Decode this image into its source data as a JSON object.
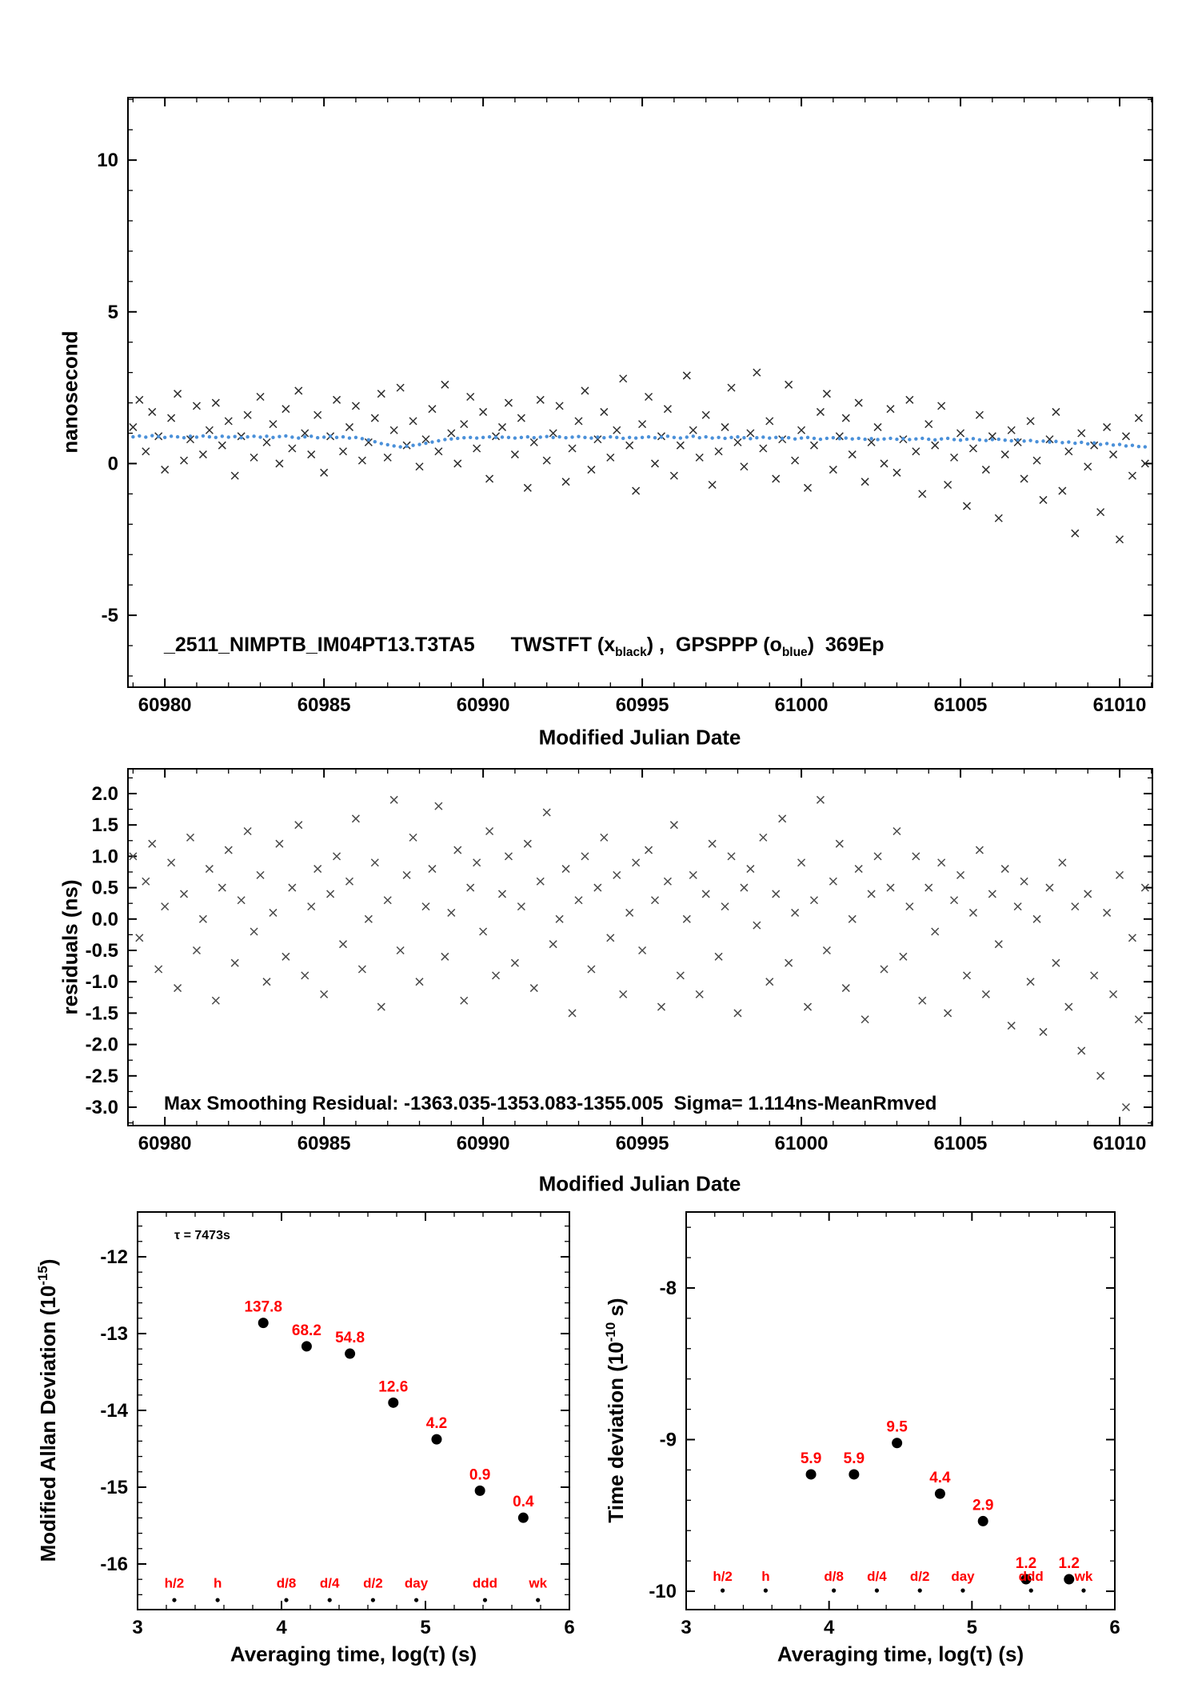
{
  "colors": {
    "axis": "#000000",
    "black_marker": "#2e2e2e",
    "residual_marker": "#4a4a4a",
    "blue_marker": "#4a90d9",
    "red_label": "#ff0000"
  },
  "chart_data": [
    {
      "id": "time-comparison",
      "type": "scatter",
      "xlabel": "Modified Julian Date",
      "ylabel": "nanosecond",
      "xlim": [
        60978.84,
        61011.03
      ],
      "ylim": [
        -7.37,
        12.06
      ],
      "xticks": [
        60980,
        60985,
        60990,
        60995,
        61000,
        61005,
        61010
      ],
      "xtick_labels": [
        "60980",
        "60985",
        "60990",
        "60995",
        "61000",
        "61005",
        "61010"
      ],
      "xminor": 1,
      "yticks": [
        -5,
        0,
        5,
        10
      ],
      "ytick_labels": [
        "-5",
        "0",
        "5",
        "10"
      ],
      "yminor": 1,
      "grid": false,
      "annotation": {
        "id_label": "_2511_NIMPTB_IM04PT13.T3TA5",
        "seg1": "TWSTFT (x",
        "sub1": "black",
        "seg2": ") ,  GPSPPP (o",
        "sub2": "blue",
        "seg3": ")  369Ep"
      },
      "series": [
        {
          "name": "TWSTFT",
          "marker": "x",
          "color": "#2e2e2e",
          "x0": 60979.0,
          "dx": 0.2,
          "y": [
            1.2,
            2.1,
            0.4,
            1.7,
            0.9,
            -0.2,
            1.5,
            2.3,
            0.1,
            0.8,
            1.9,
            0.3,
            1.1,
            2.0,
            0.6,
            1.4,
            -0.4,
            0.9,
            1.6,
            0.2,
            2.2,
            0.7,
            1.3,
            0.0,
            1.8,
            0.5,
            2.4,
            1.0,
            0.3,
            1.6,
            -0.3,
            0.9,
            2.1,
            0.4,
            1.2,
            1.9,
            0.1,
            0.7,
            1.5,
            2.3,
            0.2,
            1.1,
            2.5,
            0.6,
            1.4,
            -0.1,
            0.8,
            1.8,
            0.4,
            2.6,
            1.0,
            0.0,
            1.3,
            2.2,
            0.5,
            1.7,
            -0.5,
            0.9,
            1.2,
            2.0,
            0.3,
            1.5,
            -0.8,
            0.7,
            2.1,
            0.1,
            1.0,
            1.9,
            -0.6,
            0.5,
            1.4,
            2.4,
            -0.2,
            0.8,
            1.7,
            0.2,
            1.1,
            2.8,
            0.6,
            -0.9,
            1.3,
            2.2,
            0.0,
            0.9,
            1.8,
            -0.4,
            0.6,
            2.9,
            1.1,
            0.2,
            1.6,
            -0.7,
            0.4,
            1.2,
            2.5,
            0.7,
            -0.1,
            1.0,
            3.0,
            0.5,
            1.4,
            -0.5,
            0.8,
            2.6,
            0.1,
            1.1,
            -0.8,
            0.6,
            1.7,
            2.3,
            -0.2,
            0.9,
            1.5,
            0.3,
            2.0,
            -0.6,
            0.7,
            1.2,
            0.0,
            1.8,
            -0.3,
            0.8,
            2.1,
            0.4,
            -1.0,
            1.3,
            0.6,
            1.9,
            -0.7,
            0.2,
            1.0,
            -1.4,
            0.5,
            1.6,
            -0.2,
            0.9,
            -1.8,
            0.3,
            1.1,
            0.7,
            -0.5,
            1.4,
            0.1,
            -1.2,
            0.8,
            1.7,
            -0.9,
            0.4,
            -2.3,
            1.0,
            -0.1,
            0.6,
            -1.6,
            1.2,
            0.3,
            -2.5,
            0.9,
            -0.4,
            1.5,
            0.0
          ]
        },
        {
          "name": "GPSPPP",
          "marker": "dot",
          "color": "#4a90d9",
          "x0": 60979.0,
          "dx": 0.2,
          "y": [
            0.88,
            0.91,
            0.87,
            0.92,
            0.89,
            0.86,
            0.9,
            0.88,
            0.85,
            0.9,
            0.87,
            0.91,
            0.88,
            0.86,
            0.9,
            0.87,
            0.89,
            0.85,
            0.88,
            0.9,
            0.87,
            0.9,
            0.86,
            0.89,
            0.91,
            0.87,
            0.84,
            0.88,
            0.9,
            0.85,
            0.87,
            0.9,
            0.86,
            0.88,
            0.84,
            0.86,
            0.82,
            0.78,
            0.72,
            0.66,
            0.62,
            0.58,
            0.55,
            0.57,
            0.6,
            0.63,
            0.67,
            0.71,
            0.75,
            0.79,
            0.81,
            0.83,
            0.85,
            0.86,
            0.84,
            0.86,
            0.88,
            0.86,
            0.87,
            0.86,
            0.84,
            0.86,
            0.88,
            0.85,
            0.87,
            0.89,
            0.86,
            0.88,
            0.85,
            0.87,
            0.89,
            0.86,
            0.84,
            0.87,
            0.85,
            0.88,
            0.86,
            0.83,
            0.86,
            0.84,
            0.86,
            0.88,
            0.85,
            0.87,
            0.9,
            0.86,
            0.84,
            0.87,
            0.9,
            0.85,
            0.88,
            0.84,
            0.86,
            0.83,
            0.86,
            0.88,
            0.85,
            0.82,
            0.85,
            0.87,
            0.84,
            0.86,
            0.83,
            0.85,
            0.81,
            0.84,
            0.86,
            0.83,
            0.8,
            0.83,
            0.85,
            0.82,
            0.84,
            0.81,
            0.83,
            0.8,
            0.82,
            0.79,
            0.81,
            0.83,
            0.8,
            0.82,
            0.79,
            0.81,
            0.83,
            0.8,
            0.78,
            0.81,
            0.83,
            0.79,
            0.77,
            0.8,
            0.82,
            0.78,
            0.76,
            0.79,
            0.8,
            0.77,
            0.75,
            0.78,
            0.74,
            0.76,
            0.72,
            0.74,
            0.71,
            0.73,
            0.69,
            0.71,
            0.67,
            0.7,
            0.65,
            0.68,
            0.63,
            0.66,
            0.61,
            0.63,
            0.58,
            0.6,
            0.56,
            0.55
          ]
        }
      ]
    },
    {
      "id": "residuals",
      "type": "scatter",
      "xlabel": "Modified Julian Date",
      "ylabel": "residuals (ns)",
      "xlim": [
        60978.84,
        61011.03
      ],
      "ylim": [
        -3.293,
        2.395
      ],
      "xticks": [
        60980,
        60985,
        60990,
        60995,
        61000,
        61005,
        61010
      ],
      "xtick_labels": [
        "60980",
        "60985",
        "60990",
        "60995",
        "61000",
        "61005",
        "61010"
      ],
      "xminor": 1,
      "yticks": [
        2.0,
        1.5,
        1.0,
        0.5,
        0.0,
        -0.5,
        -1.0,
        -1.5,
        -2.0,
        -2.5,
        -3.0
      ],
      "ytick_labels": [
        "2.0",
        "1.5",
        "1.0",
        "0.5",
        "0.0",
        "-0.5",
        "-1.0",
        "-1.5",
        "-2.0",
        "-2.5",
        "-3.0"
      ],
      "yminor": 0.25,
      "grid": false,
      "annotation": "Max Smoothing Residual: -1363.035-1353.083-1355.005  Sigma= 1.114ns-MeanRmved",
      "series": [
        {
          "name": "smoothing-residuals",
          "marker": "x",
          "color": "#4a4a4a",
          "x0": 60979.0,
          "dx": 0.2,
          "y": [
            1.0,
            -0.3,
            0.6,
            1.2,
            -0.8,
            0.2,
            0.9,
            -1.1,
            0.4,
            1.3,
            -0.5,
            0.0,
            0.8,
            -1.3,
            0.5,
            1.1,
            -0.7,
            0.3,
            1.4,
            -0.2,
            0.7,
            -1.0,
            0.1,
            1.2,
            -0.6,
            0.5,
            1.5,
            -0.9,
            0.2,
            0.8,
            -1.2,
            0.4,
            1.0,
            -0.4,
            0.6,
            1.6,
            -0.8,
            0.0,
            0.9,
            -1.4,
            0.3,
            1.9,
            -0.5,
            0.7,
            1.3,
            -1.0,
            0.2,
            0.8,
            1.8,
            -0.6,
            0.1,
            1.1,
            -1.3,
            0.5,
            0.9,
            -0.2,
            1.4,
            -0.9,
            0.4,
            1.0,
            -0.7,
            0.2,
            1.2,
            -1.1,
            0.6,
            1.7,
            -0.4,
            0.0,
            0.8,
            -1.5,
            0.3,
            1.0,
            -0.8,
            0.5,
            1.3,
            -0.3,
            0.7,
            -1.2,
            0.1,
            0.9,
            -0.5,
            1.1,
            0.3,
            -1.4,
            0.6,
            1.5,
            -0.9,
            0.0,
            0.7,
            -1.2,
            0.4,
            1.2,
            -0.6,
            0.2,
            1.0,
            -1.5,
            0.5,
            0.8,
            -0.1,
            1.3,
            -1.0,
            0.4,
            1.6,
            -0.7,
            0.1,
            0.9,
            -1.4,
            0.3,
            1.9,
            -0.5,
            0.6,
            1.2,
            -1.1,
            0.0,
            0.8,
            -1.6,
            0.4,
            1.0,
            -0.8,
            0.5,
            1.4,
            -0.6,
            0.2,
            1.0,
            -1.3,
            0.5,
            -0.2,
            0.9,
            -1.5,
            0.3,
            0.7,
            -0.9,
            0.1,
            1.1,
            -1.2,
            0.4,
            -0.4,
            0.8,
            -1.7,
            0.2,
            0.6,
            -1.0,
            0.0,
            -1.8,
            0.5,
            -0.7,
            0.9,
            -1.4,
            0.2,
            -2.1,
            0.4,
            -0.9,
            -2.5,
            0.1,
            -1.2,
            0.7,
            -3.0,
            -0.3,
            -1.6,
            0.5
          ]
        }
      ]
    },
    {
      "id": "mdev",
      "type": "scatter",
      "xlabel": "Averaging time, log(τ) (s)",
      "ylabel_pre": "Modified Allan Deviation (10",
      "ylabel_sup": "-15",
      "ylabel_post": ")",
      "tau_note": "τ = 7473s",
      "xlim": [
        3,
        6
      ],
      "ylim": [
        -16.594,
        -11.417
      ],
      "xticks": [
        3,
        4,
        5,
        6
      ],
      "xtick_labels": [
        "3",
        "4",
        "5",
        "6"
      ],
      "xminor": 0.2,
      "yticks": [
        -12,
        -13,
        -14,
        -15,
        -16
      ],
      "ytick_labels": [
        "-12",
        "-13",
        "-14",
        "-15",
        "-16"
      ],
      "yminor": 0.2,
      "grid": false,
      "exp": -15,
      "log_tau": [
        3.8735,
        4.1746,
        4.4756,
        4.7766,
        5.0776,
        5.3786,
        5.6797
      ],
      "values": [
        137.8,
        68.2,
        54.8,
        12.6,
        4.2,
        0.9,
        0.4
      ],
      "value_labels": [
        "137.8",
        "68.2",
        "54.8",
        "12.6",
        "4.2",
        "0.9",
        "0.4"
      ],
      "unit_markers": {
        "labels": [
          "h/2",
          "h",
          "d/8",
          "d/4",
          "d/2",
          "day",
          "ddd",
          "wk"
        ],
        "log_tau": [
          3.2553,
          3.5563,
          4.0334,
          4.3345,
          4.6355,
          4.9365,
          5.4137,
          5.7816
        ],
        "dot_y": -16.47,
        "label_y": -16.31
      }
    },
    {
      "id": "tdev",
      "type": "scatter",
      "xlabel": "Averaging time, log(τ) (s)",
      "ylabel_pre": "Time deviation (10",
      "ylabel_sup": "-10",
      "ylabel_post": " s)",
      "xlim": [
        3,
        6
      ],
      "ylim": [
        -10.121,
        -7.499
      ],
      "xticks": [
        3,
        4,
        5,
        6
      ],
      "xtick_labels": [
        "3",
        "4",
        "5",
        "6"
      ],
      "xminor": 0.2,
      "yticks": [
        -8,
        -9,
        -10
      ],
      "ytick_labels": [
        "-8",
        "-9",
        "-10"
      ],
      "yminor": 0.2,
      "grid": false,
      "exp": -10,
      "log_tau": [
        3.8735,
        4.1746,
        4.4756,
        4.7766,
        5.0776,
        5.3786,
        5.6797
      ],
      "values": [
        5.9,
        5.9,
        9.5,
        4.4,
        2.9,
        1.2,
        1.2
      ],
      "value_labels": [
        "5.9",
        "5.9",
        "9.5",
        "4.4",
        "2.9",
        "1.2",
        "1.2"
      ],
      "unit_markers": {
        "labels": [
          "h/2",
          "h",
          "d/8",
          "d/4",
          "d/2",
          "day",
          "ddd",
          "wk"
        ],
        "log_tau": [
          3.2553,
          3.5563,
          4.0334,
          4.3345,
          4.6355,
          4.9365,
          5.4137,
          5.7816
        ],
        "dot_y": -9.995,
        "label_y": -9.93
      }
    }
  ]
}
